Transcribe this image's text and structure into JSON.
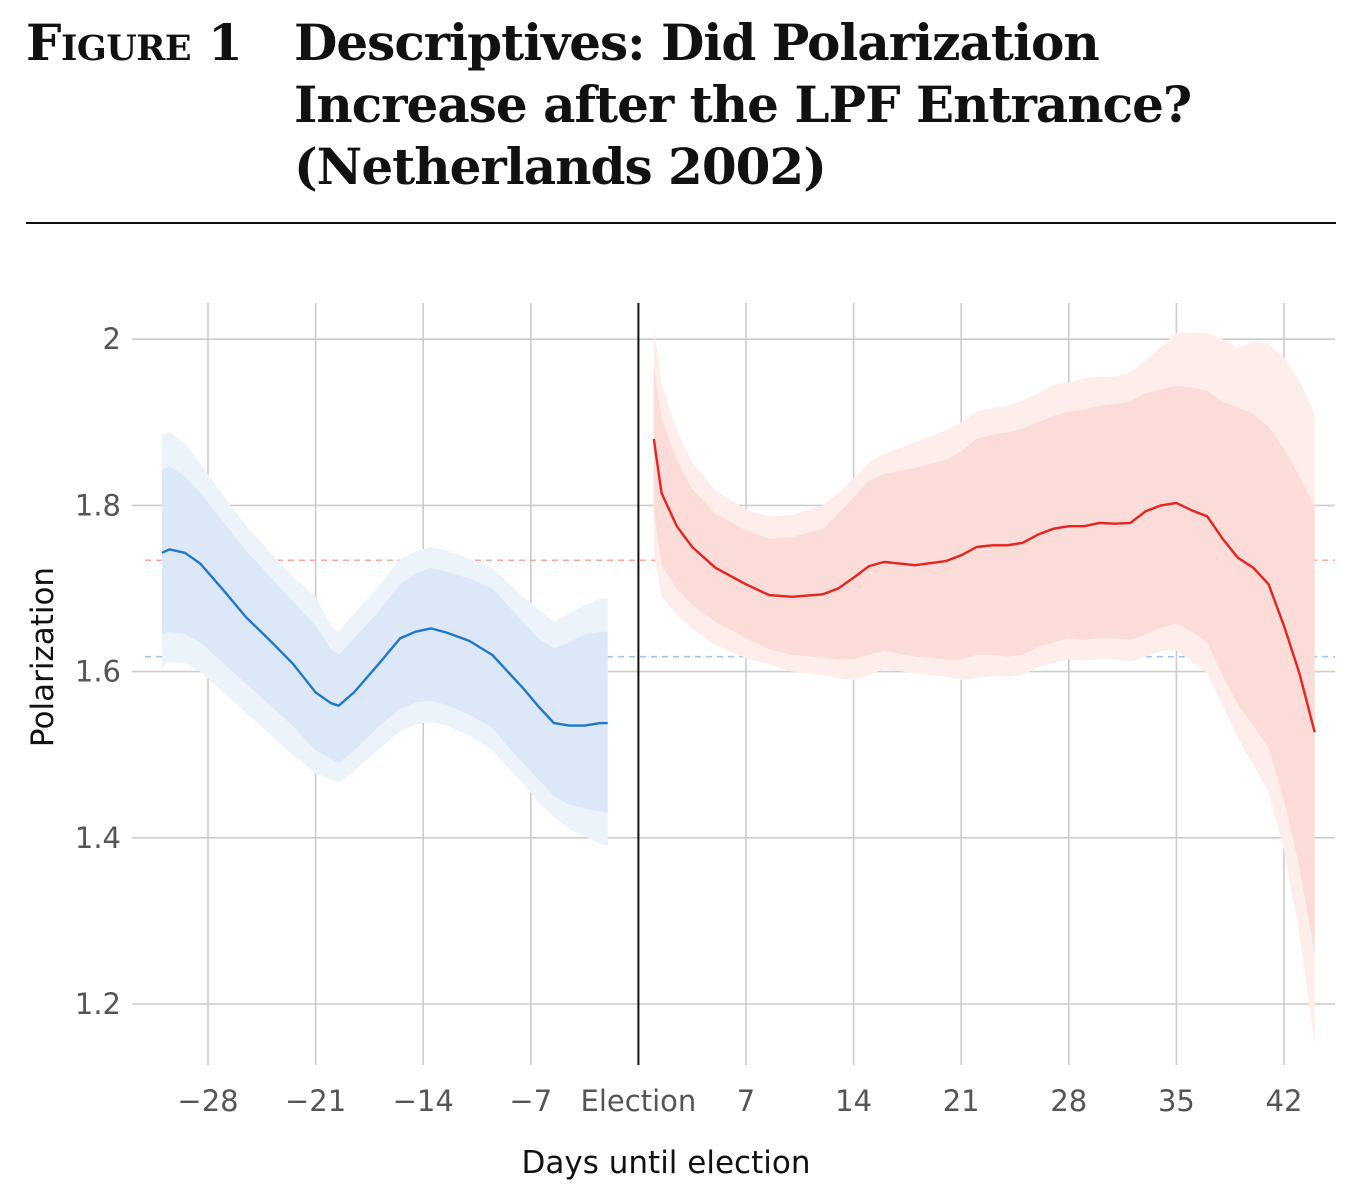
{
  "figure": {
    "label": "Figure 1",
    "title": "Descriptives: Did Polarization Increase after the LPF Entrance? (Netherlands 2002)"
  },
  "chart_data": {
    "type": "line",
    "xlabel": "Days until election",
    "ylabel": "Polarization",
    "xlim": [
      -32.5,
      45
    ],
    "ylim": [
      1.12,
      2.04
    ],
    "x_ticks": [
      {
        "value": -28,
        "label": "−28"
      },
      {
        "value": -21,
        "label": "−21"
      },
      {
        "value": -14,
        "label": "−14"
      },
      {
        "value": -7,
        "label": "−7"
      },
      {
        "value": 0,
        "label": "Election"
      },
      {
        "value": 7,
        "label": "7"
      },
      {
        "value": 14,
        "label": "14"
      },
      {
        "value": 21,
        "label": "21"
      },
      {
        "value": 28,
        "label": "28"
      },
      {
        "value": 35,
        "label": "35"
      },
      {
        "value": 42,
        "label": "42"
      }
    ],
    "y_ticks": [
      {
        "value": 1.2,
        "label": "1.2"
      },
      {
        "value": 1.4,
        "label": "1.4"
      },
      {
        "value": 1.6,
        "label": "1.6"
      },
      {
        "value": 1.8,
        "label": "1.8"
      },
      {
        "value": 2.0,
        "label": "2"
      }
    ],
    "grid": true,
    "election_line_x": 0,
    "reference_lines": [
      {
        "y": 1.734,
        "color": "#f4a79a"
      },
      {
        "y": 1.618,
        "color": "#9fc3ea"
      }
    ],
    "series": [
      {
        "color": "#1f78c8",
        "band_inner_color": "#dce8f7",
        "band_outer_color": "#edf3fa",
        "x": [
          -31,
          -30.5,
          -29.5,
          -28.5,
          -27,
          -25.5,
          -24,
          -22.5,
          -21,
          -20,
          -19.5,
          -18.5,
          -17,
          -15.5,
          -14.5,
          -13.5,
          -12.5,
          -11,
          -9.5,
          -8.5,
          -7.5,
          -6.5,
          -5.5,
          -4.5,
          -3.5,
          -2.5,
          -2
        ],
        "y": [
          1.743,
          1.747,
          1.743,
          1.73,
          1.698,
          1.665,
          1.638,
          1.61,
          1.575,
          1.562,
          1.559,
          1.575,
          1.607,
          1.64,
          1.648,
          1.652,
          1.647,
          1.637,
          1.62,
          1.6,
          1.58,
          1.558,
          1.538,
          1.535,
          1.535,
          1.538,
          1.538
        ],
        "inner_upper": [
          1.843,
          1.847,
          1.835,
          1.815,
          1.78,
          1.745,
          1.715,
          1.685,
          1.655,
          1.627,
          1.62,
          1.64,
          1.67,
          1.705,
          1.718,
          1.725,
          1.72,
          1.712,
          1.7,
          1.68,
          1.66,
          1.64,
          1.628,
          1.635,
          1.645,
          1.648,
          1.648
        ],
        "inner_lower": [
          1.645,
          1.648,
          1.645,
          1.635,
          1.61,
          1.585,
          1.56,
          1.535,
          1.505,
          1.495,
          1.49,
          1.505,
          1.532,
          1.555,
          1.563,
          1.565,
          1.56,
          1.548,
          1.532,
          1.51,
          1.49,
          1.47,
          1.45,
          1.44,
          1.435,
          1.432,
          1.43
        ],
        "outer_upper": [
          1.885,
          1.888,
          1.875,
          1.85,
          1.812,
          1.775,
          1.745,
          1.715,
          1.69,
          1.655,
          1.648,
          1.67,
          1.7,
          1.735,
          1.745,
          1.75,
          1.746,
          1.736,
          1.725,
          1.708,
          1.69,
          1.675,
          1.66,
          1.67,
          1.68,
          1.688,
          1.688
        ],
        "outer_lower": [
          1.605,
          1.612,
          1.61,
          1.6,
          1.575,
          1.55,
          1.525,
          1.5,
          1.478,
          1.47,
          1.467,
          1.48,
          1.505,
          1.528,
          1.536,
          1.54,
          1.535,
          1.523,
          1.505,
          1.485,
          1.465,
          1.443,
          1.425,
          1.41,
          1.402,
          1.393,
          1.39
        ]
      },
      {
        "color": "#e8231f",
        "band_inner_color": "#fcdcd8",
        "band_outer_color": "#fdeeec",
        "x": [
          1,
          1.5,
          2.5,
          3.5,
          5,
          7,
          8.5,
          10,
          12,
          13,
          14,
          15,
          16,
          18,
          20,
          21,
          22,
          23,
          24,
          25,
          26,
          27,
          28,
          29,
          30,
          31,
          32,
          33,
          34,
          35,
          36,
          37,
          38,
          39,
          40,
          41,
          42,
          43,
          44
        ],
        "y": [
          1.88,
          1.815,
          1.775,
          1.75,
          1.725,
          1.705,
          1.692,
          1.69,
          1.693,
          1.7,
          1.713,
          1.727,
          1.732,
          1.728,
          1.733,
          1.74,
          1.75,
          1.752,
          1.752,
          1.755,
          1.765,
          1.772,
          1.775,
          1.775,
          1.779,
          1.778,
          1.779,
          1.793,
          1.8,
          1.803,
          1.794,
          1.787,
          1.76,
          1.737,
          1.725,
          1.705,
          1.655,
          1.598,
          1.527
        ],
        "inner_upper": [
          1.968,
          1.905,
          1.855,
          1.82,
          1.79,
          1.77,
          1.76,
          1.762,
          1.772,
          1.79,
          1.81,
          1.83,
          1.838,
          1.845,
          1.855,
          1.865,
          1.88,
          1.885,
          1.888,
          1.892,
          1.9,
          1.908,
          1.913,
          1.915,
          1.92,
          1.922,
          1.925,
          1.935,
          1.94,
          1.944,
          1.942,
          1.938,
          1.925,
          1.918,
          1.91,
          1.895,
          1.868,
          1.835,
          1.798
        ],
        "inner_lower": [
          1.792,
          1.728,
          1.7,
          1.68,
          1.66,
          1.64,
          1.627,
          1.62,
          1.617,
          1.614,
          1.615,
          1.62,
          1.625,
          1.618,
          1.615,
          1.615,
          1.62,
          1.62,
          1.618,
          1.62,
          1.63,
          1.635,
          1.64,
          1.638,
          1.64,
          1.64,
          1.638,
          1.645,
          1.653,
          1.658,
          1.648,
          1.635,
          1.595,
          1.56,
          1.535,
          1.508,
          1.445,
          1.365,
          1.26
        ],
        "outer_upper": [
          2.012,
          1.948,
          1.89,
          1.852,
          1.818,
          1.795,
          1.787,
          1.788,
          1.8,
          1.815,
          1.833,
          1.852,
          1.862,
          1.876,
          1.89,
          1.9,
          1.913,
          1.917,
          1.92,
          1.926,
          1.935,
          1.945,
          1.948,
          1.953,
          1.955,
          1.955,
          1.96,
          1.975,
          1.99,
          2.008,
          2.008,
          2.008,
          2.0,
          1.99,
          1.997,
          1.995,
          1.978,
          1.95,
          1.91
        ],
        "outer_lower": [
          1.745,
          1.69,
          1.668,
          1.652,
          1.632,
          1.616,
          1.609,
          1.6,
          1.596,
          1.592,
          1.59,
          1.596,
          1.603,
          1.598,
          1.594,
          1.59,
          1.592,
          1.595,
          1.594,
          1.596,
          1.605,
          1.61,
          1.615,
          1.613,
          1.615,
          1.615,
          1.612,
          1.618,
          1.625,
          1.625,
          1.612,
          1.598,
          1.56,
          1.52,
          1.488,
          1.455,
          1.385,
          1.285,
          1.15
        ]
      }
    ]
  }
}
